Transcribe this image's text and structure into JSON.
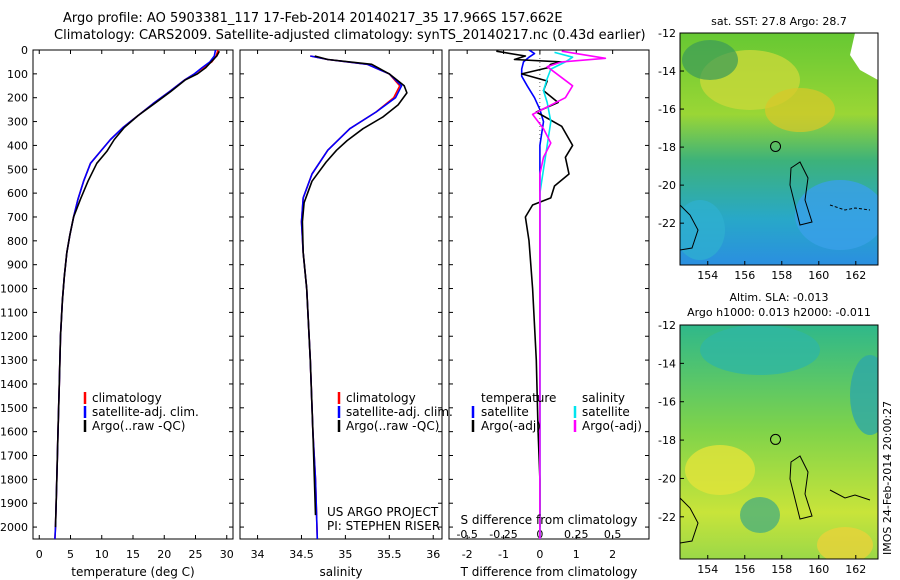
{
  "figure": {
    "title_line1": "Argo profile: AO 5903381_117 17-Feb-2014 20140217_35 17.966S 157.662E",
    "title_line2": "Climatology: CARS2009. Satellite-adjusted climatology: synTS_20140217.nc (0.43d earlier)",
    "credit_line1": "US ARGO PROJECT",
    "credit_line2": "PI: STEPHEN RISER",
    "timestamp": "IMOS 24-Feb-2014 20:00:27"
  },
  "colors": {
    "climatology": "#ff0000",
    "satellite": "#0000ff",
    "argo": "#000000",
    "sal_satellite": "#00e5ee",
    "sal_argo": "#ff00ff"
  },
  "chart_data": [
    {
      "type": "line",
      "id": "temperature",
      "xlabel": "temperature (deg C)",
      "ylabel": "",
      "xlim": [
        -1,
        31
      ],
      "ylim": [
        2050,
        0
      ],
      "xticks": [
        0,
        5,
        10,
        15,
        20,
        25,
        30
      ],
      "yticks": [
        0,
        100,
        200,
        300,
        400,
        500,
        600,
        700,
        800,
        900,
        1000,
        1100,
        1200,
        1300,
        1400,
        1500,
        1600,
        1700,
        1800,
        1900,
        2000
      ],
      "legend": [
        "climatology",
        "satellite-adj. clim.",
        "Argo(..raw -QC)"
      ],
      "series": [
        {
          "name": "climatology",
          "color": "#ff0000",
          "x": [
            28.6,
            28.3,
            27.6,
            26.2,
            24.8,
            23.3,
            20.8,
            18.2,
            15.8,
            13.4,
            11.4,
            9.8,
            8.2,
            7.1,
            6.2,
            5.5,
            4.9,
            4.4,
            4.0,
            3.7,
            3.4,
            3.2,
            3.0,
            2.8,
            2.6,
            2.5
          ],
          "y": [
            0,
            25,
            50,
            75,
            100,
            125,
            175,
            225,
            275,
            325,
            375,
            425,
            475,
            550,
            625,
            700,
            775,
            850,
            950,
            1050,
            1200,
            1400,
            1600,
            1800,
            2000,
            2050
          ]
        },
        {
          "name": "satellite-adj. clim.",
          "color": "#0000ff",
          "x": [
            28.2,
            28.0,
            27.3,
            26.0,
            24.8,
            23.3,
            20.8,
            18.2,
            15.8,
            13.4,
            11.4,
            9.8,
            8.2,
            7.1,
            6.2,
            5.5,
            4.9,
            4.4,
            4.0,
            3.7,
            3.4,
            3.2,
            3.0,
            2.8,
            2.6,
            2.5
          ],
          "y": [
            0,
            25,
            50,
            75,
            100,
            125,
            175,
            225,
            275,
            325,
            375,
            425,
            475,
            550,
            625,
            700,
            775,
            850,
            950,
            1050,
            1200,
            1400,
            1600,
            1800,
            2000,
            2050
          ]
        },
        {
          "name": "Argo(..raw -QC)",
          "color": "#000000",
          "x": [
            28.8,
            28.4,
            27.5,
            26.6,
            25.3,
            23.4,
            21.0,
            18.4,
            15.8,
            13.6,
            12.0,
            10.8,
            9.2,
            7.8,
            6.6,
            5.5,
            4.9,
            4.4,
            4.0,
            3.7,
            3.4,
            3.2,
            3.0,
            2.8,
            2.6
          ],
          "y": [
            5,
            25,
            50,
            75,
            100,
            125,
            175,
            225,
            275,
            325,
            375,
            425,
            475,
            550,
            625,
            700,
            775,
            850,
            950,
            1050,
            1200,
            1400,
            1600,
            1800,
            2000
          ]
        }
      ]
    },
    {
      "type": "line",
      "id": "salinity",
      "xlabel": "salinity",
      "ylabel": "",
      "xlim": [
        33.8,
        36.1
      ],
      "ylim": [
        2050,
        0
      ],
      "xticks": [
        34,
        34.5,
        35,
        35.5,
        36
      ],
      "legend": [
        "climatology",
        "satellite-adj. clim.",
        "Argo(..raw -QC)"
      ],
      "series": [
        {
          "name": "climatology",
          "color": "#ff0000",
          "x": [
            34.6,
            34.8,
            35.25,
            35.5,
            35.62,
            35.55,
            35.35,
            35.05,
            34.8,
            34.62,
            34.52,
            34.5,
            34.52,
            34.56,
            34.6,
            34.63,
            34.66,
            34.68
          ],
          "y": [
            25,
            40,
            60,
            100,
            150,
            200,
            260,
            330,
            420,
            520,
            620,
            720,
            850,
            1000,
            1300,
            1600,
            1800,
            2050
          ]
        },
        {
          "name": "satellite-adj. clim.",
          "color": "#0000ff",
          "x": [
            34.6,
            34.8,
            35.25,
            35.5,
            35.64,
            35.57,
            35.35,
            35.05,
            34.8,
            34.62,
            34.52,
            34.5,
            34.52,
            34.56,
            34.6,
            34.63,
            34.66,
            34.68
          ],
          "y": [
            25,
            40,
            60,
            100,
            150,
            200,
            260,
            330,
            420,
            520,
            620,
            720,
            850,
            1000,
            1300,
            1600,
            1800,
            2050
          ]
        },
        {
          "name": "Argo(..raw -QC)",
          "color": "#000000",
          "x": [
            34.65,
            34.8,
            35.3,
            35.5,
            35.67,
            35.7,
            35.6,
            35.43,
            35.2,
            35.02,
            34.9,
            34.78,
            34.62,
            34.53,
            34.51,
            34.52,
            34.56,
            34.6,
            34.63,
            34.66
          ],
          "y": [
            25,
            40,
            60,
            100,
            150,
            180,
            230,
            280,
            330,
            380,
            420,
            470,
            550,
            640,
            720,
            850,
            1000,
            1300,
            1600,
            1950
          ]
        }
      ]
    },
    {
      "type": "line",
      "id": "difference",
      "xlabel": "T difference from climatology",
      "xlabel_top": "S difference from climatology",
      "xlim": [
        -2.5,
        3
      ],
      "ylim": [
        2050,
        0
      ],
      "xticks": [
        -2,
        -1,
        0,
        1,
        2
      ],
      "xticks_top_labels": [
        "-0.5",
        "-0.25",
        "0",
        "0.25",
        "0.5"
      ],
      "xticks_top_pos": [
        -2,
        -1,
        0,
        1,
        2
      ],
      "legend_headers": [
        "temperature",
        "salinity"
      ],
      "legend": [
        "satellite",
        "Argo(-adj)",
        "satellite",
        "Argo(-adj)"
      ],
      "series": [
        {
          "name": "satellite",
          "group": "temperature",
          "color": "#0000ff",
          "x": [
            -0.3,
            -0.15,
            -0.3,
            -0.45,
            -0.5,
            -0.5,
            -0.35,
            -0.15,
            0,
            0.1,
            0.05,
            0,
            0,
            0
          ],
          "y": [
            0,
            15,
            30,
            50,
            80,
            110,
            150,
            200,
            250,
            300,
            350,
            400,
            500,
            2050
          ]
        },
        {
          "name": "Argo(-adj)",
          "group": "temperature",
          "color": "#000000",
          "x": [
            -1.2,
            -0.4,
            -0.7,
            0.6,
            0.3,
            0.2,
            -0.5,
            0.2,
            0.1,
            0.5,
            -0.1,
            0.6,
            0.9,
            0.7,
            0.8,
            0.4,
            0.3,
            -0.2,
            -0.4,
            -0.3,
            -0.2,
            -0.1,
            -0.05,
            0,
            0
          ],
          "y": [
            5,
            25,
            40,
            50,
            60,
            75,
            100,
            130,
            170,
            220,
            260,
            320,
            400,
            450,
            520,
            570,
            620,
            650,
            700,
            800,
            1000,
            1300,
            1600,
            1800,
            2000
          ]
        },
        {
          "name": "satellite",
          "group": "salinity",
          "color": "#00e5ee",
          "x": [
            0.4,
            0.9,
            0.7,
            0.3,
            0.2,
            0.1,
            0.2,
            0.3,
            0.2,
            0.1,
            0,
            0,
            0
          ],
          "y": [
            10,
            30,
            50,
            80,
            120,
            170,
            220,
            300,
            400,
            500,
            600,
            700,
            2050
          ]
        },
        {
          "name": "Argo(-adj)",
          "group": "salinity",
          "color": "#ff00ff",
          "x": [
            0.6,
            1.8,
            0.6,
            0.2,
            0.9,
            0.7,
            -0.2,
            0.1,
            0.3,
            0.1,
            0,
            0,
            0
          ],
          "y": [
            5,
            35,
            50,
            70,
            150,
            200,
            270,
            330,
            390,
            450,
            520,
            700,
            2050
          ]
        }
      ]
    }
  ],
  "map_sst": {
    "title": "sat. SST: 27.8 Argo: 28.7",
    "xlim": [
      152.5,
      163.2
    ],
    "ylim": [
      -24.2,
      -12
    ],
    "xticks": [
      154,
      156,
      158,
      160,
      162
    ],
    "yticks": [
      -12,
      -14,
      -16,
      -18,
      -20,
      -22
    ],
    "marker_lon": 157.662,
    "marker_lat": -17.966
  },
  "map_sla": {
    "title_line1": "Altim. SLA: -0.013",
    "title_line2": "Argo h1000: 0.013 h2000: -0.011",
    "xlim": [
      152.5,
      163.2
    ],
    "ylim": [
      -24.2,
      -12
    ],
    "xticks": [
      154,
      156,
      158,
      160,
      162
    ],
    "yticks": [
      -12,
      -14,
      -16,
      -18,
      -20,
      -22
    ],
    "marker_lon": 157.662,
    "marker_lat": -17.966
  }
}
